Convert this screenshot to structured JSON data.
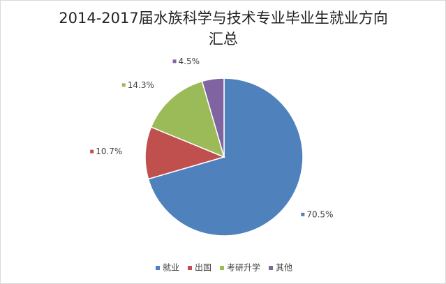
{
  "chart_data": {
    "type": "pie",
    "title": "2014-2017届水族科学与技术专业毕业生就业方向汇总",
    "categories": [
      "就业",
      "出国",
      "考研升学",
      "其他"
    ],
    "values": [
      70.5,
      10.7,
      14.3,
      4.5
    ],
    "value_labels": [
      "70.5%",
      "10.7%",
      "14.3%",
      "4.5%"
    ],
    "colors": [
      "#4f81bd",
      "#c0504d",
      "#9bbb59",
      "#8064a2"
    ],
    "legend": "bottom"
  }
}
